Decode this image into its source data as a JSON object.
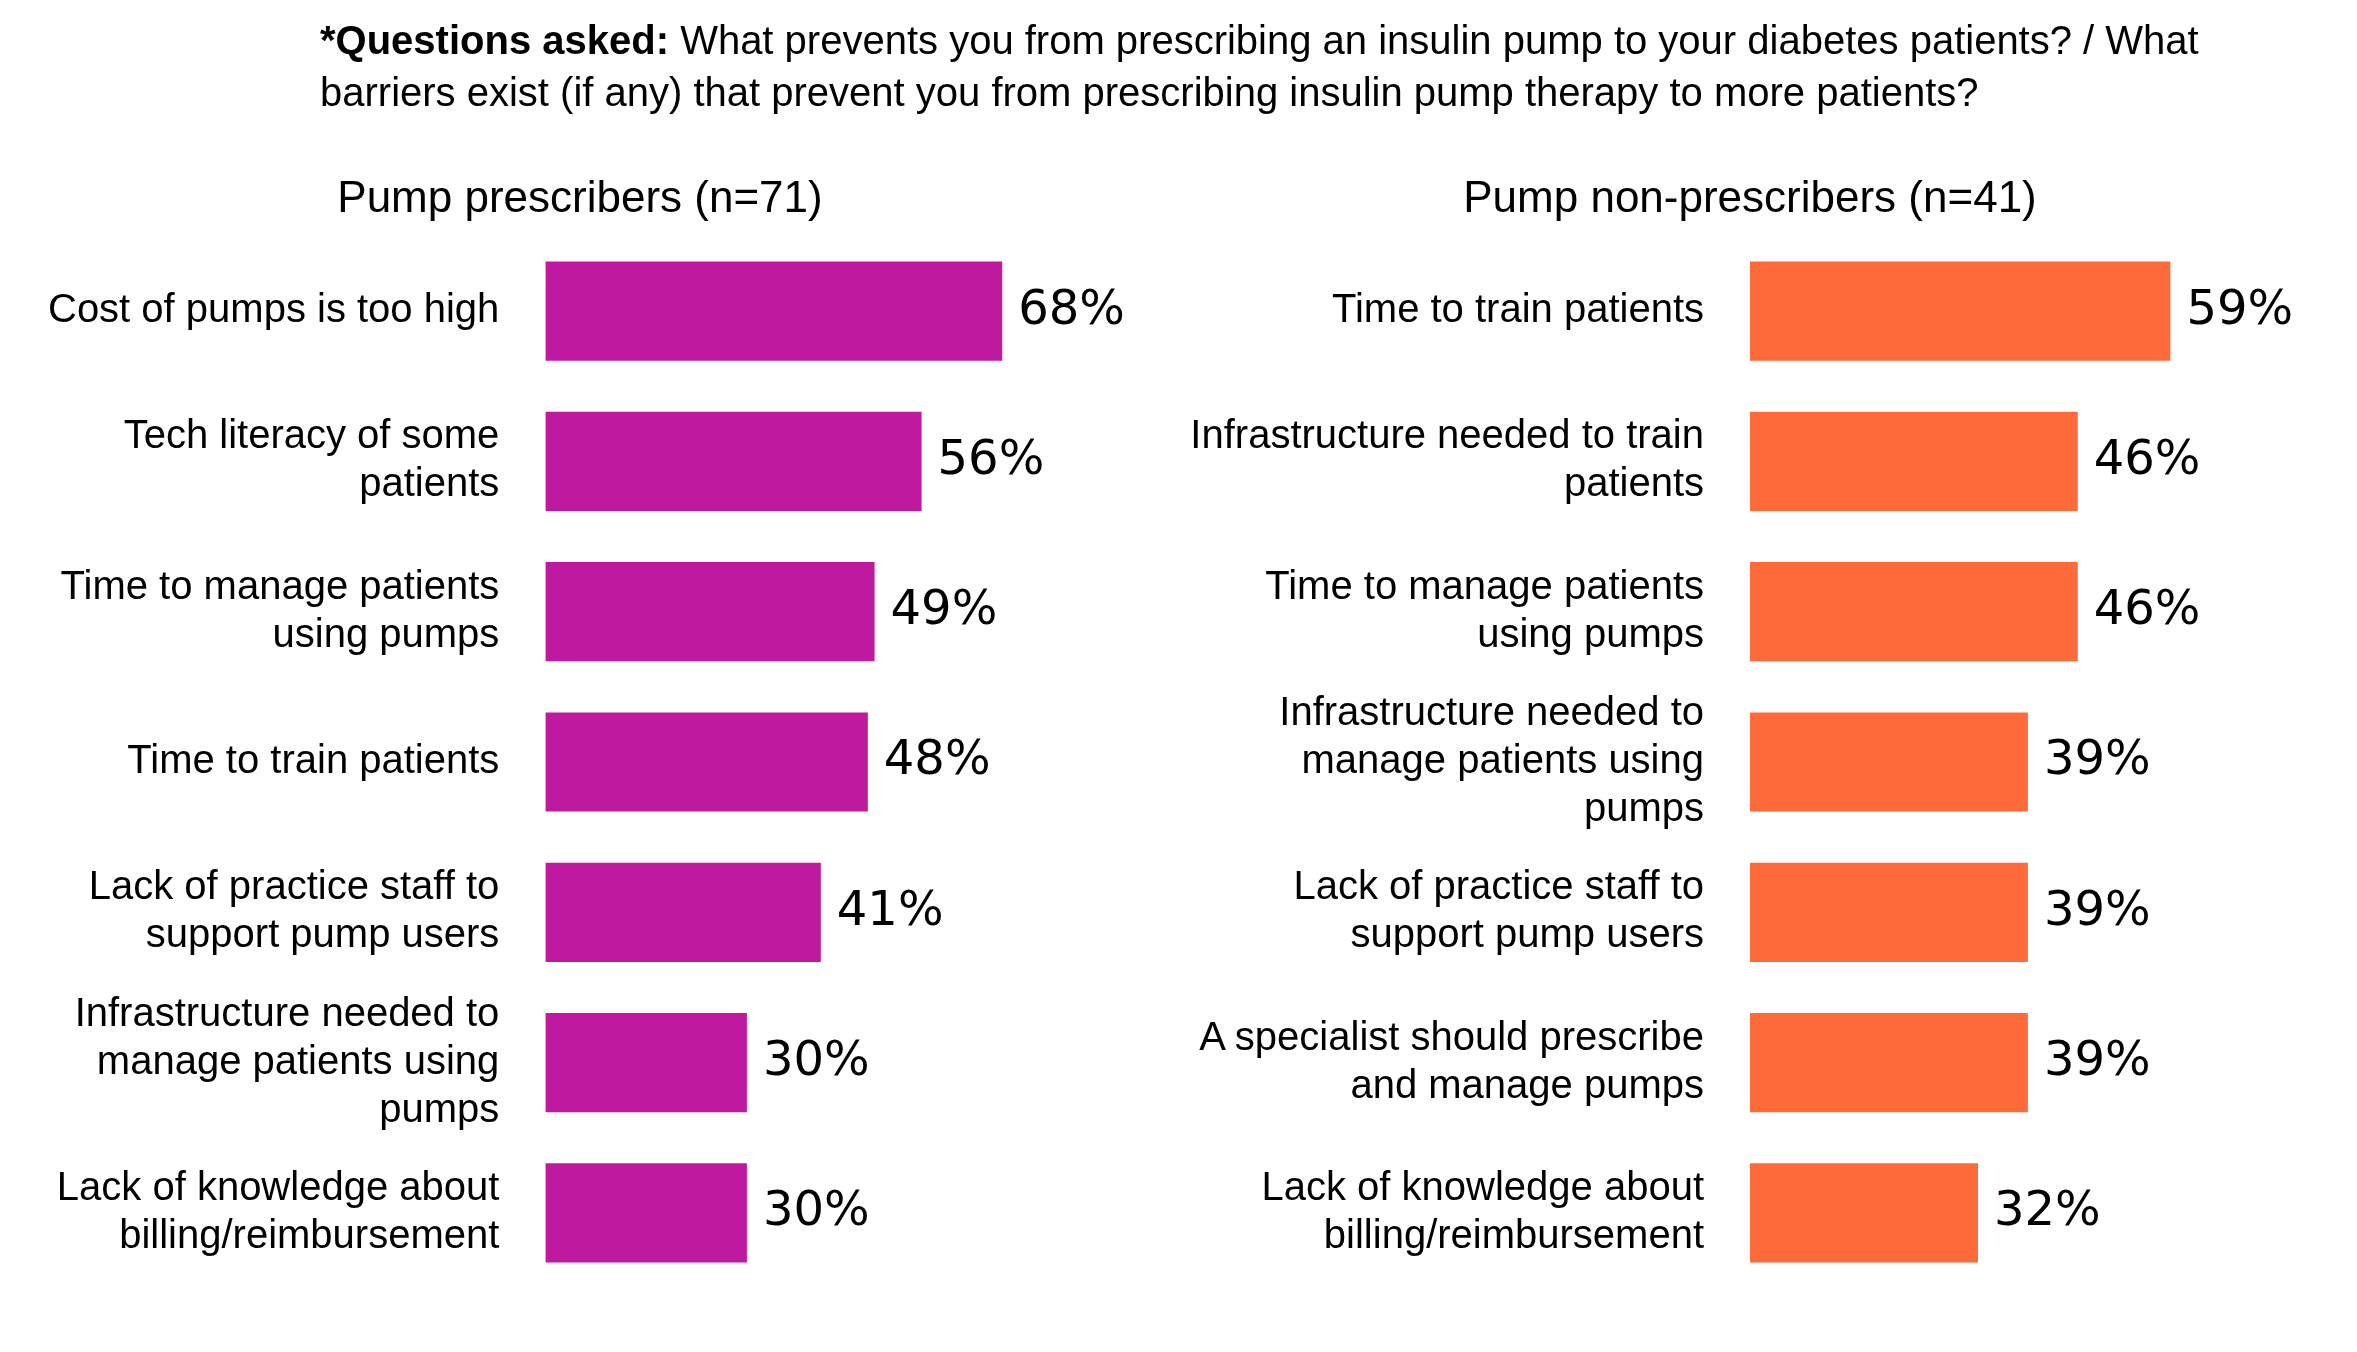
{
  "chart_data": [
    {
      "type": "bar",
      "orientation": "horizontal",
      "title": "Pump prescribers (n=71)",
      "annotations": [
        "*Questions asked:",
        "What prevents you from prescribing an insulin pump to your diabetes patients? / What barriers exist (if any) that prevent you from prescribing insulin pump therapy to more patients?"
      ],
      "categories": [
        "Cost of pumps is too high",
        "Tech literacy of some patients",
        "Time to manage patients using pumps",
        "Time to train patients",
        "Lack of practice staff to support pump users",
        "Infrastructure needed to manage patients using pumps",
        "Lack of knowledge about billing/reimbursement"
      ],
      "values": [
        68,
        56,
        49,
        48,
        41,
        30,
        30
      ],
      "value_labels": [
        "68%",
        "56%",
        "49%",
        "48%",
        "41%",
        "30%",
        "30%"
      ],
      "color": "#bf199f",
      "tick_labels": "y",
      "legend": false
    },
    {
      "type": "bar",
      "orientation": "horizontal",
      "title": "Pump non-prescribers (n=41)",
      "categories": [
        "Time to train patients",
        "Infrastructure needed to train patients",
        "Time to manage patients using pumps",
        "Infrastructure needed to manage patients using pumps",
        "Lack of practice staff to support pump users",
        "A specialist should prescribe and manage pumps",
        "Lack of knowledge about billing/reimbursement"
      ],
      "values": [
        59,
        46,
        46,
        39,
        39,
        39,
        32
      ],
      "value_labels": [
        "59%",
        "46%",
        "46%",
        "39%",
        "39%",
        "39%",
        "32%"
      ],
      "color": "#ff6a3a",
      "tick_labels": "y",
      "legend": false
    }
  ]
}
